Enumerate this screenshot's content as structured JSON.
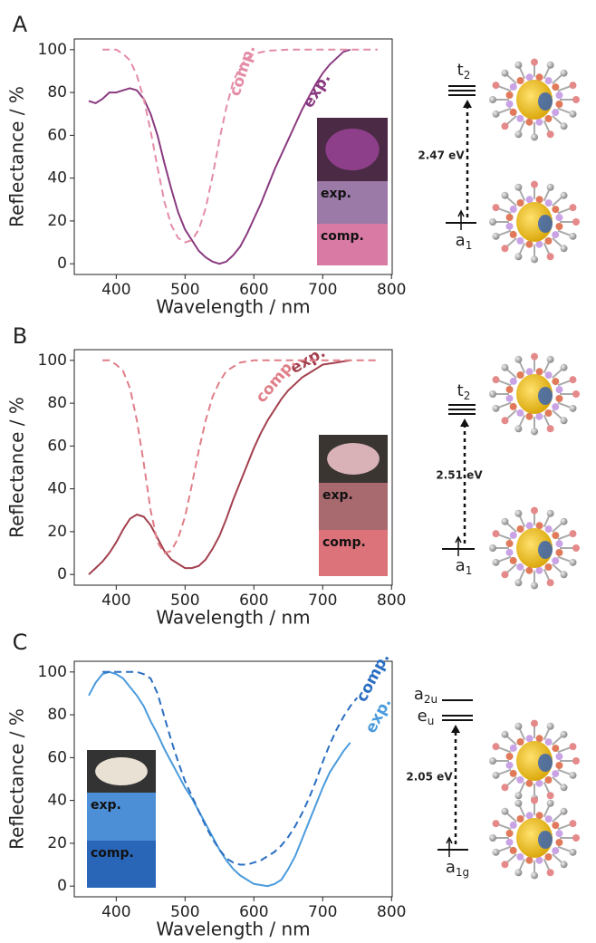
{
  "chart_data": [
    {
      "type": "line",
      "panel": "A",
      "xlabel": "Wavelength / nm",
      "ylabel": "Reflectance / %",
      "xlim": [
        339,
        801
      ],
      "ylim": [
        -5,
        105
      ],
      "xticks": [
        400,
        500,
        600,
        700,
        800
      ],
      "yticks": [
        0,
        20,
        40,
        60,
        80,
        100
      ],
      "series": [
        {
          "name": "exp.",
          "color": "#8a3a80",
          "dash": false,
          "swatch_color": "#9c7aa8",
          "x": [
            360,
            370,
            380,
            390,
            400,
            410,
            420,
            430,
            440,
            450,
            460,
            470,
            480,
            490,
            500,
            510,
            520,
            530,
            540,
            550,
            560,
            570,
            580,
            590,
            600,
            610,
            620,
            630,
            640,
            650,
            660,
            670,
            680,
            690,
            700,
            710,
            720,
            730,
            740
          ],
          "values": [
            76,
            75,
            77,
            80,
            80,
            81,
            82,
            81,
            77,
            70,
            60,
            47,
            35,
            24,
            16,
            11,
            6,
            3,
            1,
            0,
            1,
            4,
            8,
            14,
            21,
            28,
            36,
            44,
            51,
            58,
            65,
            72,
            78,
            84,
            89,
            93,
            96,
            99,
            100
          ]
        },
        {
          "name": "comp.",
          "color": "#e48ca6",
          "dash": true,
          "swatch_color": "#d87aa3",
          "x": [
            380,
            390,
            400,
            410,
            420,
            430,
            440,
            450,
            460,
            470,
            480,
            490,
            500,
            510,
            520,
            530,
            540,
            550,
            560,
            570,
            580,
            590,
            600,
            620,
            650,
            780
          ],
          "values": [
            100,
            100,
            100,
            98,
            95,
            88,
            77,
            62,
            45,
            29,
            18,
            12,
            10,
            11,
            16,
            26,
            41,
            58,
            73,
            85,
            92,
            96,
            98,
            99.5,
            100,
            100
          ]
        }
      ],
      "energy_diagram": {
        "gap_label": "2.47 eV",
        "levels": [
          {
            "base": "t",
            "sub": "2"
          },
          {
            "base": "a",
            "sub": "1"
          }
        ]
      }
    },
    {
      "type": "line",
      "panel": "B",
      "xlabel": "Wavelength / nm",
      "ylabel": "Reflectance / %",
      "xlim": [
        339,
        801
      ],
      "ylim": [
        -5,
        105
      ],
      "xticks": [
        400,
        500,
        600,
        700,
        800
      ],
      "yticks": [
        0,
        20,
        40,
        60,
        80,
        100
      ],
      "series": [
        {
          "name": "exp.",
          "color": "#a3404e",
          "dash": false,
          "swatch_color": "#a86a6f",
          "x": [
            360,
            370,
            380,
            390,
            400,
            410,
            420,
            430,
            440,
            450,
            460,
            470,
            480,
            490,
            500,
            510,
            520,
            530,
            540,
            550,
            560,
            570,
            580,
            590,
            600,
            610,
            620,
            630,
            640,
            650,
            660,
            670,
            680,
            690,
            700,
            720,
            740
          ],
          "values": [
            0,
            3,
            6,
            10,
            15,
            21,
            26,
            28,
            27,
            23,
            17,
            11,
            7,
            5,
            3,
            3,
            4,
            7,
            12,
            18,
            26,
            35,
            43,
            51,
            59,
            66,
            72,
            77,
            82,
            86,
            89,
            92,
            94,
            96,
            98,
            99,
            100
          ]
        },
        {
          "name": "comp.",
          "color": "#e07e88",
          "dash": true,
          "swatch_color": "#dc727a",
          "x": [
            380,
            390,
            400,
            410,
            420,
            430,
            440,
            450,
            460,
            470,
            480,
            490,
            500,
            510,
            520,
            530,
            540,
            550,
            560,
            570,
            580,
            600,
            780
          ],
          "values": [
            100,
            100,
            98,
            95,
            87,
            72,
            52,
            30,
            15,
            10,
            11,
            17,
            27,
            42,
            58,
            72,
            83,
            90,
            95,
            97,
            99,
            100,
            100
          ]
        }
      ],
      "energy_diagram": {
        "gap_label": "2.51 eV",
        "levels": [
          {
            "base": "t",
            "sub": "2"
          },
          {
            "base": "a",
            "sub": "1"
          }
        ]
      }
    },
    {
      "type": "line",
      "panel": "C",
      "xlabel": "Wavelength / nm",
      "ylabel": "Reflectance / %",
      "xlim": [
        339,
        801
      ],
      "ylim": [
        -5,
        105
      ],
      "xticks": [
        400,
        500,
        600,
        700,
        800
      ],
      "yticks": [
        0,
        20,
        40,
        60,
        80,
        100
      ],
      "series": [
        {
          "name": "exp.",
          "color": "#4b9bdc",
          "dash": false,
          "swatch_color": "#4d8fd6",
          "x": [
            360,
            370,
            380,
            390,
            400,
            410,
            420,
            430,
            440,
            450,
            460,
            470,
            480,
            490,
            500,
            510,
            520,
            530,
            540,
            550,
            560,
            570,
            580,
            590,
            600,
            610,
            620,
            630,
            640,
            650,
            660,
            670,
            680,
            690,
            700,
            710,
            720,
            730,
            740
          ],
          "values": [
            89,
            95,
            99,
            100,
            99,
            97,
            93,
            89,
            84,
            77,
            71,
            64,
            58,
            52,
            46,
            41,
            35,
            29,
            23,
            17,
            12,
            8,
            5,
            3,
            1,
            0.5,
            0,
            1,
            3,
            8,
            14,
            22,
            30,
            38,
            46,
            53,
            58,
            63,
            67
          ]
        },
        {
          "name": "comp.",
          "color": "#2a6ec2",
          "dash": true,
          "swatch_color": "#2a66b8",
          "x": [
            380,
            390,
            400,
            410,
            420,
            430,
            440,
            450,
            460,
            470,
            480,
            490,
            500,
            510,
            520,
            530,
            540,
            550,
            560,
            570,
            580,
            590,
            600,
            610,
            620,
            630,
            640,
            650,
            660,
            670,
            680,
            690,
            700,
            710,
            720,
            730,
            740,
            750
          ],
          "values": [
            100,
            100,
            100,
            100,
            100,
            100,
            99,
            97,
            90,
            79,
            68,
            58,
            49,
            42,
            35,
            28,
            22,
            17,
            13,
            11,
            10,
            10,
            11,
            12,
            14,
            16,
            19,
            23,
            28,
            34,
            41,
            49,
            58,
            66,
            73,
            79,
            84,
            88
          ]
        }
      ],
      "energy_diagram": {
        "gap_label": "2.05 eV",
        "levels": [
          {
            "base": "a",
            "sub": "2u"
          },
          {
            "base": "e",
            "sub": "u"
          },
          {
            "base": "a",
            "sub": "1g"
          }
        ]
      }
    }
  ]
}
